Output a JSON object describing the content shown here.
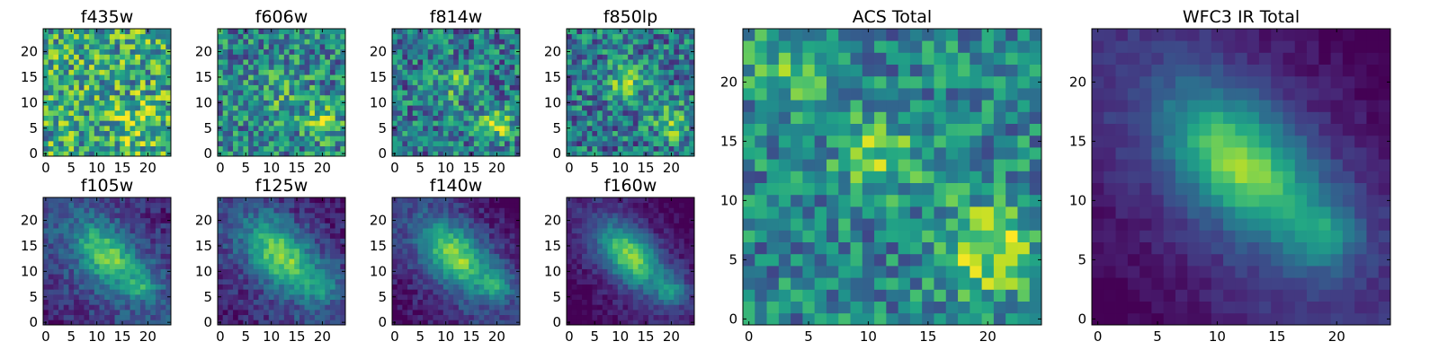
{
  "figure": {
    "description_colormap": "viridis",
    "palette": [
      "#440154",
      "#3b528b",
      "#21918c",
      "#5ec962",
      "#fde725"
    ]
  },
  "chart_data": [
    {
      "type": "heatmap",
      "title": "f435w",
      "grid_size": 25,
      "xlim": [
        0,
        24
      ],
      "ylim": [
        0,
        24
      ],
      "xticks": [
        0,
        5,
        10,
        15,
        20
      ],
      "yticks": [
        0,
        5,
        10,
        15,
        20
      ],
      "pattern": "noise",
      "peaks": [
        {
          "x": 18,
          "y": 6,
          "amp": 0.2,
          "sigma": 3
        }
      ],
      "base": 0.6,
      "noise": 0.35
    },
    {
      "type": "heatmap",
      "title": "f606w",
      "grid_size": 25,
      "xlim": [
        0,
        24
      ],
      "ylim": [
        0,
        24
      ],
      "xticks": [
        0,
        5,
        10,
        15,
        20
      ],
      "yticks": [
        0,
        5,
        10,
        15,
        20
      ],
      "pattern": "noise",
      "peaks": [
        {
          "x": 20,
          "y": 6,
          "amp": 0.35,
          "sigma": 2.5
        },
        {
          "x": 12,
          "y": 12,
          "amp": 0.15,
          "sigma": 4
        }
      ],
      "base": 0.45,
      "noise": 0.3
    },
    {
      "type": "heatmap",
      "title": "f814w",
      "grid_size": 25,
      "xlim": [
        0,
        24
      ],
      "ylim": [
        0,
        24
      ],
      "xticks": [
        0,
        5,
        10,
        15,
        20
      ],
      "yticks": [
        0,
        5,
        10,
        15,
        20
      ],
      "pattern": "noise",
      "peaks": [
        {
          "x": 20,
          "y": 6,
          "amp": 0.4,
          "sigma": 2.5
        },
        {
          "x": 11,
          "y": 14,
          "amp": 0.25,
          "sigma": 3
        }
      ],
      "base": 0.4,
      "noise": 0.3
    },
    {
      "type": "heatmap",
      "title": "f850lp",
      "grid_size": 25,
      "xlim": [
        0,
        24
      ],
      "ylim": [
        0,
        24
      ],
      "xticks": [
        0,
        5,
        10,
        15,
        20
      ],
      "yticks": [
        0,
        5,
        10,
        15,
        20
      ],
      "pattern": "noise",
      "peaks": [
        {
          "x": 20,
          "y": 6,
          "amp": 0.35,
          "sigma": 2.5
        },
        {
          "x": 11,
          "y": 14,
          "amp": 0.3,
          "sigma": 3
        }
      ],
      "base": 0.4,
      "noise": 0.3
    },
    {
      "type": "heatmap",
      "title": "f105w",
      "grid_size": 25,
      "xlim": [
        0,
        24
      ],
      "ylim": [
        0,
        24
      ],
      "xticks": [
        0,
        5,
        10,
        15,
        20
      ],
      "yticks": [
        0,
        5,
        10,
        15,
        20
      ],
      "pattern": "galaxy",
      "peaks": [
        {
          "x": 12,
          "y": 13,
          "amp": 0.55,
          "sigma": 5
        },
        {
          "x": 19,
          "y": 7,
          "amp": 0.25,
          "sigma": 2
        }
      ],
      "base": 0.25,
      "noise": 0.12
    },
    {
      "type": "heatmap",
      "title": "f125w",
      "grid_size": 25,
      "xlim": [
        0,
        24
      ],
      "ylim": [
        0,
        24
      ],
      "xticks": [
        0,
        5,
        10,
        15,
        20
      ],
      "yticks": [
        0,
        5,
        10,
        15,
        20
      ],
      "pattern": "galaxy",
      "peaks": [
        {
          "x": 12,
          "y": 13,
          "amp": 0.6,
          "sigma": 5.5
        },
        {
          "x": 20,
          "y": 7,
          "amp": 0.25,
          "sigma": 2
        }
      ],
      "base": 0.22,
      "noise": 0.12
    },
    {
      "type": "heatmap",
      "title": "f140w",
      "grid_size": 25,
      "xlim": [
        0,
        24
      ],
      "ylim": [
        0,
        24
      ],
      "xticks": [
        0,
        5,
        10,
        15,
        20
      ],
      "yticks": [
        0,
        5,
        10,
        15,
        20
      ],
      "pattern": "galaxy",
      "peaks": [
        {
          "x": 12,
          "y": 13,
          "amp": 0.65,
          "sigma": 5.5
        },
        {
          "x": 20,
          "y": 7,
          "amp": 0.3,
          "sigma": 2
        }
      ],
      "base": 0.18,
      "noise": 0.1
    },
    {
      "type": "heatmap",
      "title": "f160w",
      "grid_size": 25,
      "xlim": [
        0,
        24
      ],
      "ylim": [
        0,
        24
      ],
      "xticks": [
        0,
        5,
        10,
        15,
        20
      ],
      "yticks": [
        0,
        5,
        10,
        15,
        20
      ],
      "pattern": "galaxy",
      "peaks": [
        {
          "x": 12,
          "y": 13,
          "amp": 0.7,
          "sigma": 5
        },
        {
          "x": 20,
          "y": 6,
          "amp": 0.35,
          "sigma": 2
        }
      ],
      "base": 0.12,
      "noise": 0.08
    },
    {
      "type": "heatmap",
      "title": "ACS Total",
      "grid_size": 25,
      "xlim": [
        0,
        24
      ],
      "ylim": [
        0,
        24
      ],
      "xticks": [
        0,
        5,
        10,
        15,
        20
      ],
      "yticks": [
        0,
        5,
        10,
        15,
        20
      ],
      "pattern": "noise",
      "peaks": [
        {
          "x": 20,
          "y": 6,
          "amp": 0.45,
          "sigma": 2.8
        },
        {
          "x": 11,
          "y": 14,
          "amp": 0.3,
          "sigma": 2.5
        },
        {
          "x": 4,
          "y": 21,
          "amp": 0.25,
          "sigma": 2.5
        }
      ],
      "base": 0.45,
      "noise": 0.25
    },
    {
      "type": "heatmap",
      "title": "WFC3 IR Total",
      "grid_size": 25,
      "xlim": [
        0,
        24
      ],
      "ylim": [
        0,
        24
      ],
      "xticks": [
        0,
        5,
        10,
        15,
        20
      ],
      "yticks": [
        0,
        5,
        10,
        15,
        20
      ],
      "pattern": "galaxy",
      "peaks": [
        {
          "x": 12,
          "y": 13,
          "amp": 0.7,
          "sigma": 5
        },
        {
          "x": 19,
          "y": 7,
          "amp": 0.3,
          "sigma": 2
        }
      ],
      "base": 0.15,
      "noise": 0.05
    }
  ]
}
